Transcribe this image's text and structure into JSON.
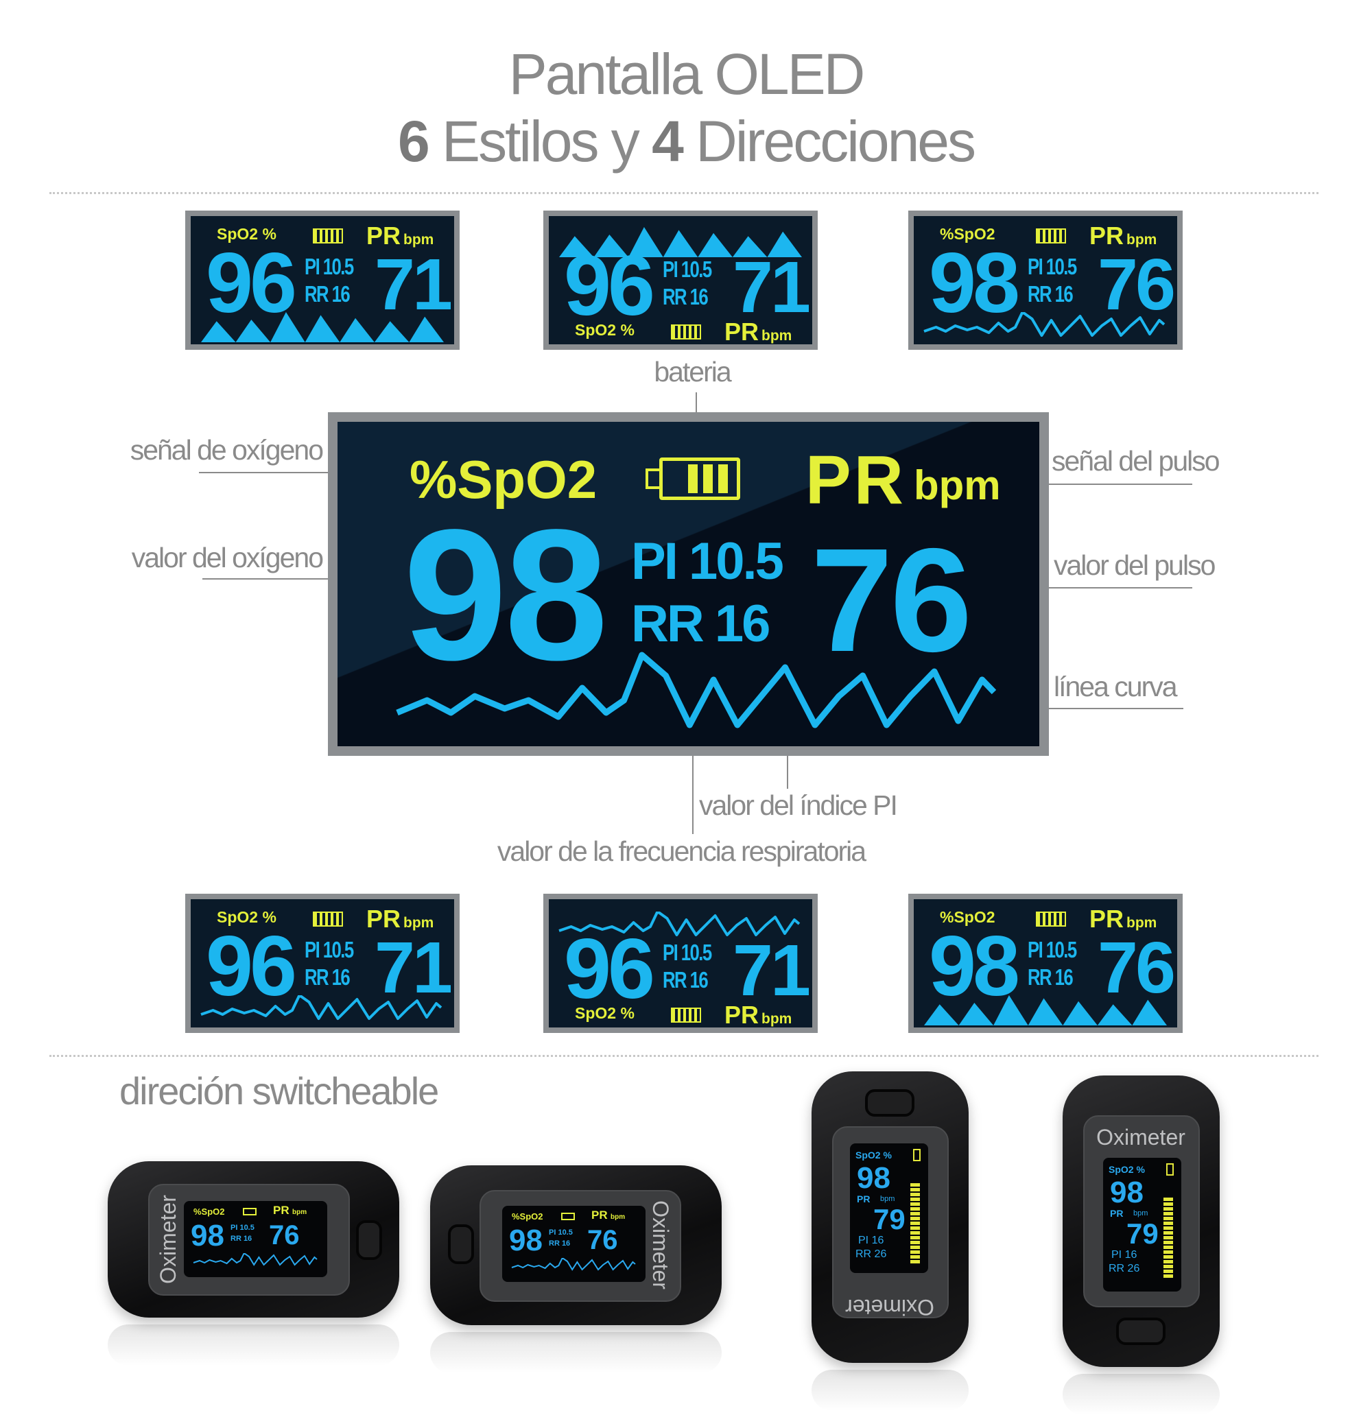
{
  "title": {
    "line1": "Pantalla OLED",
    "line2_num_styles": "6",
    "line2_styles_text": " Estilos y ",
    "line2_num_directions": "4",
    "line2_directions_text": " Direcciones"
  },
  "colors": {
    "label_yellow": "#e4f03a",
    "value_cyan": "#1cb6ef",
    "screen_bg": "#0a1a29",
    "bezel_gray": "#8a8d90",
    "text_gray": "#8a8a8a"
  },
  "top_row": [
    {
      "spo2_label": "SpO2 %",
      "pr_label": "PR",
      "bpm_label": "bpm",
      "spo2_value": "96",
      "pi_label": "PI",
      "pi_value": "10.5",
      "rr_label": "RR",
      "rr_value": "16",
      "pr_value": "71",
      "header_position": "top",
      "wave_style": "triangles"
    },
    {
      "spo2_label": "SpO2 %",
      "pr_label": "PR",
      "bpm_label": "bpm",
      "spo2_value": "96",
      "pi_label": "PI",
      "pi_value": "10.5",
      "rr_label": "RR",
      "rr_value": "16",
      "pr_value": "71",
      "header_position": "bottom",
      "wave_style": "triangles"
    },
    {
      "spo2_label": "%SpO2",
      "pr_label": "PR",
      "bpm_label": "bpm",
      "spo2_value": "98",
      "pi_label": "PI",
      "pi_value": "10.5",
      "rr_label": "RR",
      "rr_value": "16",
      "pr_value": "76",
      "header_position": "top",
      "wave_style": "curve"
    }
  ],
  "main_screen": {
    "spo2_label": "%SpO2",
    "pr_label": "PR",
    "bpm_label": "bpm",
    "spo2_value": "98",
    "pi_label": "PI",
    "pi_value": "10.5",
    "rr_label": "RR",
    "rr_value": "16",
    "pr_value": "76",
    "battery_icon": "battery-full-icon",
    "wave_style": "curve"
  },
  "annotations": {
    "battery": "bateria",
    "oxygen_signal": "señal de oxígeno",
    "oxygen_value": "valor del oxígeno",
    "pulse_signal": "señal del pulso",
    "pulse_value": "valor del pulso",
    "curve_line": "línea curva",
    "pi_index_value": "valor del índice PI",
    "respiratory_rate_value": "valor de la frecuencia respiratoria"
  },
  "bottom_row": [
    {
      "spo2_label": "SpO2 %",
      "pr_label": "PR",
      "bpm_label": "bpm",
      "spo2_value": "96",
      "pi_label": "PI",
      "pi_value": "10.5",
      "rr_label": "RR",
      "rr_value": "16",
      "pr_value": "71",
      "header_position": "top",
      "wave_style": "curve"
    },
    {
      "spo2_label": "SpO2 %",
      "pr_label": "PR",
      "bpm_label": "bpm",
      "spo2_value": "96",
      "pi_label": "PI",
      "pi_value": "10.5",
      "rr_label": "RR",
      "rr_value": "16",
      "pr_value": "71",
      "header_position": "bottom",
      "wave_style": "curve"
    },
    {
      "spo2_label": "%SpO2",
      "pr_label": "PR",
      "bpm_label": "bpm",
      "spo2_value": "98",
      "pi_label": "PI",
      "pi_value": "10.5",
      "rr_label": "RR",
      "rr_value": "16",
      "pr_value": "76",
      "header_position": "top",
      "wave_style": "triangles"
    }
  ],
  "switch_section": {
    "title": "direción switcheable"
  },
  "devices": [
    {
      "brand": "Oximeter",
      "orientation": "horizontal-left",
      "spo2_label": "%SpO2",
      "pr_label": "PR",
      "bpm_label": "bpm",
      "spo2_value": "98",
      "pi_value": "PI 10.5",
      "rr_value": "RR 16",
      "pr_value": "76"
    },
    {
      "brand": "Oximeter",
      "orientation": "horizontal-right",
      "spo2_label": "%SpO2",
      "pr_label": "PR",
      "bpm_label": "bpm",
      "spo2_value": "98",
      "pi_value": "PI 10.5",
      "rr_value": "RR 16",
      "pr_value": "76"
    },
    {
      "brand": "Oximeter",
      "orientation": "vertical-inverted",
      "spo2_label": "SpO2 %",
      "pr_label": "PR",
      "bpm_label": "bpm",
      "spo2_value": "98",
      "pr_value": "79",
      "pi_value": "PI  16",
      "rr_value": "RR 26"
    },
    {
      "brand": "Oximeter",
      "orientation": "vertical",
      "spo2_label": "SpO2 %",
      "pr_label": "PR",
      "bpm_label": "bpm",
      "spo2_value": "98",
      "pr_value": "79",
      "pi_value": "PI  16",
      "rr_value": "RR 26"
    }
  ]
}
